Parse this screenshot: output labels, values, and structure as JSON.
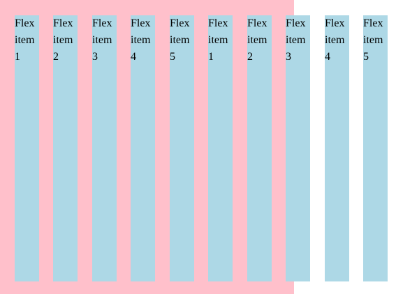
{
  "container": {
    "background": "#ffc0cb"
  },
  "items": [
    {
      "label": "Flex item 1",
      "word": "Flex",
      "word2": "item",
      "number": "1"
    },
    {
      "label": "Flex item 2",
      "word": "Flex",
      "word2": "item",
      "number": "2"
    },
    {
      "label": "Flex item 3",
      "word": "Flex",
      "word2": "item",
      "number": "3"
    },
    {
      "label": "Flex item 4",
      "word": "Flex",
      "word2": "item",
      "number": "4"
    },
    {
      "label": "Flex item 5",
      "word": "Flex",
      "word2": "item",
      "number": "5"
    },
    {
      "label": "Flex item 1",
      "word": "Flex",
      "word2": "item",
      "number": "1"
    },
    {
      "label": "Flex item 2",
      "word": "Flex",
      "word2": "item",
      "number": "2"
    },
    {
      "label": "Flex item 3",
      "word": "Flex",
      "word2": "item",
      "number": "3"
    },
    {
      "label": "Flex item 4",
      "word": "Flex",
      "word2": "item",
      "number": "4"
    },
    {
      "label": "Flex item 5",
      "word": "Flex",
      "word2": "item",
      "number": "5"
    }
  ],
  "item_background": "#add8e6"
}
